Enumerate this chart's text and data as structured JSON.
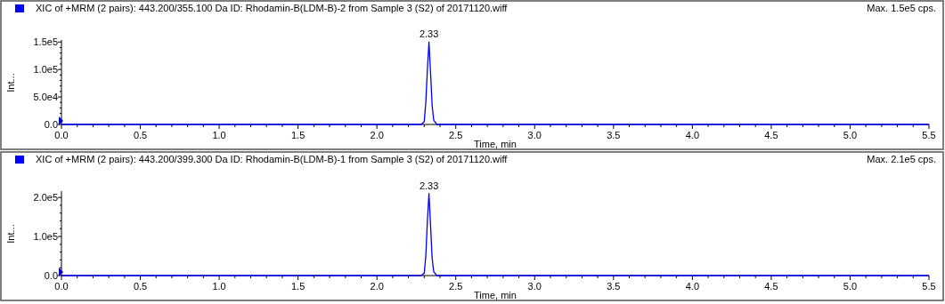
{
  "chart_data": [
    {
      "type": "line",
      "title": "XIC of +MRM (2 pairs): 443.200/355.100 Da ID: Rhodamin-B(LDM-B)-2 from Sample 3 (S2) of 20171120.wiff",
      "xlabel": "Time, min",
      "ylabel": "Int...",
      "annotations": [
        {
          "text": "2.33",
          "x": 2.33,
          "y": 150000
        },
        "Max. 1.5e5 cps."
      ],
      "grid": false,
      "x": [
        0,
        2.0,
        2.28,
        2.3,
        2.31,
        2.32,
        2.33,
        2.34,
        2.35,
        2.36,
        2.38,
        2.5,
        5.5
      ],
      "series": [
        {
          "color": "#0000ff",
          "values": [
            0,
            0,
            0,
            5000,
            40000,
            100000,
            150000,
            95000,
            35000,
            8000,
            0,
            0,
            0
          ]
        }
      ],
      "xlim": [
        0,
        5.5
      ],
      "ylim": [
        0,
        152000
      ],
      "xticks": [
        {
          "value": 0,
          "label": "0.0"
        },
        {
          "value": 0.1,
          "label": null
        },
        {
          "value": 0.2,
          "label": null
        },
        {
          "value": 0.3,
          "label": null
        },
        {
          "value": 0.4,
          "label": null
        },
        {
          "value": 0.5,
          "label": "0.5"
        },
        {
          "value": 0.6,
          "label": null
        },
        {
          "value": 0.7,
          "label": null
        },
        {
          "value": 0.8,
          "label": null
        },
        {
          "value": 0.9,
          "label": null
        },
        {
          "value": 1,
          "label": "1.0"
        },
        {
          "value": 1.1,
          "label": null
        },
        {
          "value": 1.2,
          "label": null
        },
        {
          "value": 1.3,
          "label": null
        },
        {
          "value": 1.4,
          "label": null
        },
        {
          "value": 1.5,
          "label": "1.5"
        },
        {
          "value": 1.6,
          "label": null
        },
        {
          "value": 1.7,
          "label": null
        },
        {
          "value": 1.8,
          "label": null
        },
        {
          "value": 1.9,
          "label": null
        },
        {
          "value": 2,
          "label": "2.0"
        },
        {
          "value": 2.1,
          "label": null
        },
        {
          "value": 2.2,
          "label": null
        },
        {
          "value": 2.3,
          "label": null
        },
        {
          "value": 2.4,
          "label": null
        },
        {
          "value": 2.5,
          "label": "2.5"
        },
        {
          "value": 2.6,
          "label": null
        },
        {
          "value": 2.7,
          "label": null
        },
        {
          "value": 2.8,
          "label": null
        },
        {
          "value": 2.9,
          "label": null
        },
        {
          "value": 3,
          "label": "3.0"
        },
        {
          "value": 3.1,
          "label": null
        },
        {
          "value": 3.2,
          "label": null
        },
        {
          "value": 3.3,
          "label": null
        },
        {
          "value": 3.4,
          "label": null
        },
        {
          "value": 3.5,
          "label": "3.5"
        },
        {
          "value": 3.6,
          "label": null
        },
        {
          "value": 3.7,
          "label": null
        },
        {
          "value": 3.8,
          "label": null
        },
        {
          "value": 3.9,
          "label": null
        },
        {
          "value": 4,
          "label": "4.0"
        },
        {
          "value": 4.1,
          "label": null
        },
        {
          "value": 4.2,
          "label": null
        },
        {
          "value": 4.3,
          "label": null
        },
        {
          "value": 4.4,
          "label": null
        },
        {
          "value": 4.5,
          "label": "4.5"
        },
        {
          "value": 4.6,
          "label": null
        },
        {
          "value": 4.7,
          "label": null
        },
        {
          "value": 4.8,
          "label": null
        },
        {
          "value": 4.9,
          "label": null
        },
        {
          "value": 5,
          "label": "5.0"
        },
        {
          "value": 5.1,
          "label": null
        },
        {
          "value": 5.2,
          "label": null
        },
        {
          "value": 5.3,
          "label": null
        },
        {
          "value": 5.4,
          "label": null
        },
        {
          "value": 5.5,
          "label": "5.5"
        }
      ],
      "yticks": [
        {
          "value": 0,
          "label": "0.0"
        },
        {
          "value": 10000,
          "label": null
        },
        {
          "value": 20000,
          "label": null
        },
        {
          "value": 30000,
          "label": null
        },
        {
          "value": 40000,
          "label": null
        },
        {
          "value": 50000,
          "label": "5.0e4"
        },
        {
          "value": 60000,
          "label": null
        },
        {
          "value": 70000,
          "label": null
        },
        {
          "value": 80000,
          "label": null
        },
        {
          "value": 90000,
          "label": null
        },
        {
          "value": 100000,
          "label": "1.0e5"
        },
        {
          "value": 110000,
          "label": null
        },
        {
          "value": 120000,
          "label": null
        },
        {
          "value": 130000,
          "label": null
        },
        {
          "value": 140000,
          "label": null
        },
        {
          "value": 150000,
          "label": "1.5e5"
        }
      ]
    },
    {
      "type": "line",
      "title": "XIC of +MRM (2 pairs): 443.200/399.300 Da ID: Rhodamin-B(LDM-B)-1 from Sample 3 (S2) of 20171120.wiff",
      "xlabel": "Time, min",
      "ylabel": "Int...",
      "annotations": [
        {
          "text": "2.33",
          "x": 2.33,
          "y": 210000
        },
        "Max. 2.1e5 cps."
      ],
      "grid": false,
      "x": [
        0,
        2.0,
        2.28,
        2.3,
        2.31,
        2.32,
        2.33,
        2.34,
        2.35,
        2.36,
        2.38,
        2.5,
        5.5
      ],
      "series": [
        {
          "color": "#0000ff",
          "values": [
            0,
            0,
            0,
            6000,
            50000,
            140000,
            210000,
            130000,
            45000,
            10000,
            0,
            0,
            0
          ]
        }
      ],
      "xlim": [
        0,
        5.5
      ],
      "ylim": [
        0,
        214000
      ],
      "xticks": [
        {
          "value": 0,
          "label": "0.0"
        },
        {
          "value": 0.1,
          "label": null
        },
        {
          "value": 0.2,
          "label": null
        },
        {
          "value": 0.3,
          "label": null
        },
        {
          "value": 0.4,
          "label": null
        },
        {
          "value": 0.5,
          "label": "0.5"
        },
        {
          "value": 0.6,
          "label": null
        },
        {
          "value": 0.7,
          "label": null
        },
        {
          "value": 0.8,
          "label": null
        },
        {
          "value": 0.9,
          "label": null
        },
        {
          "value": 1,
          "label": "1.0"
        },
        {
          "value": 1.1,
          "label": null
        },
        {
          "value": 1.2,
          "label": null
        },
        {
          "value": 1.3,
          "label": null
        },
        {
          "value": 1.4,
          "label": null
        },
        {
          "value": 1.5,
          "label": "1.5"
        },
        {
          "value": 1.6,
          "label": null
        },
        {
          "value": 1.7,
          "label": null
        },
        {
          "value": 1.8,
          "label": null
        },
        {
          "value": 1.9,
          "label": null
        },
        {
          "value": 2,
          "label": "2.0"
        },
        {
          "value": 2.1,
          "label": null
        },
        {
          "value": 2.2,
          "label": null
        },
        {
          "value": 2.3,
          "label": null
        },
        {
          "value": 2.4,
          "label": null
        },
        {
          "value": 2.5,
          "label": "2.5"
        },
        {
          "value": 2.6,
          "label": null
        },
        {
          "value": 2.7,
          "label": null
        },
        {
          "value": 2.8,
          "label": null
        },
        {
          "value": 2.9,
          "label": null
        },
        {
          "value": 3,
          "label": "3.0"
        },
        {
          "value": 3.1,
          "label": null
        },
        {
          "value": 3.2,
          "label": null
        },
        {
          "value": 3.3,
          "label": null
        },
        {
          "value": 3.4,
          "label": null
        },
        {
          "value": 3.5,
          "label": "3.5"
        },
        {
          "value": 3.6,
          "label": null
        },
        {
          "value": 3.7,
          "label": null
        },
        {
          "value": 3.8,
          "label": null
        },
        {
          "value": 3.9,
          "label": null
        },
        {
          "value": 4,
          "label": "4.0"
        },
        {
          "value": 4.1,
          "label": null
        },
        {
          "value": 4.2,
          "label": null
        },
        {
          "value": 4.3,
          "label": null
        },
        {
          "value": 4.4,
          "label": null
        },
        {
          "value": 4.5,
          "label": "4.5"
        },
        {
          "value": 4.6,
          "label": null
        },
        {
          "value": 4.7,
          "label": null
        },
        {
          "value": 4.8,
          "label": null
        },
        {
          "value": 4.9,
          "label": null
        },
        {
          "value": 5,
          "label": "5.0"
        },
        {
          "value": 5.1,
          "label": null
        },
        {
          "value": 5.2,
          "label": null
        },
        {
          "value": 5.3,
          "label": null
        },
        {
          "value": 5.4,
          "label": null
        },
        {
          "value": 5.5,
          "label": "5.5"
        }
      ],
      "yticks": [
        {
          "value": 0,
          "label": "0.0"
        },
        {
          "value": 20000,
          "label": null
        },
        {
          "value": 40000,
          "label": null
        },
        {
          "value": 60000,
          "label": null
        },
        {
          "value": 80000,
          "label": null
        },
        {
          "value": 100000,
          "label": "1.0e5"
        },
        {
          "value": 120000,
          "label": null
        },
        {
          "value": 140000,
          "label": null
        },
        {
          "value": 160000,
          "label": null
        },
        {
          "value": 180000,
          "label": null
        },
        {
          "value": 200000,
          "label": "2.0e5"
        }
      ]
    }
  ]
}
